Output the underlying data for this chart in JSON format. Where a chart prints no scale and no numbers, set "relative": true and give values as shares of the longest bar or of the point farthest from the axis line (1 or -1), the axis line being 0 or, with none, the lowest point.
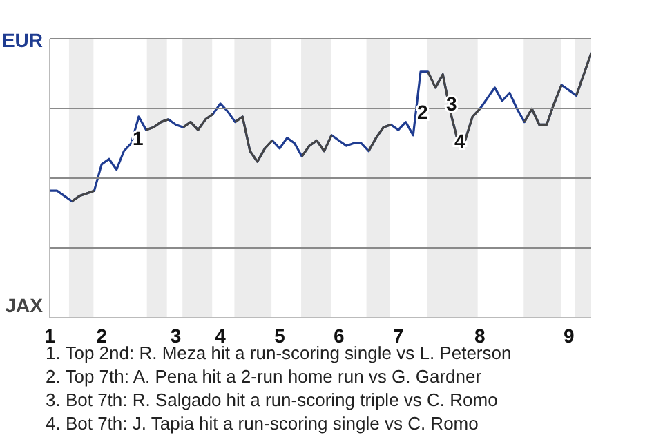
{
  "chart_data": {
    "type": "line",
    "relative": true,
    "categories": [
      "1",
      null,
      null,
      null,
      null,
      null,
      null,
      "2",
      null,
      null,
      null,
      null,
      null,
      null,
      null,
      null,
      null,
      "3",
      null,
      null,
      null,
      null,
      null,
      "4",
      null,
      null,
      null,
      null,
      null,
      null,
      null,
      "5",
      null,
      null,
      null,
      null,
      null,
      null,
      null,
      "6",
      null,
      null,
      null,
      null,
      null,
      null,
      null,
      "7",
      null,
      null,
      null,
      null,
      null,
      null,
      null,
      null,
      null,
      null,
      "8",
      null,
      null,
      null,
      null,
      null,
      null,
      null,
      null,
      null,
      null,
      null,
      "9",
      null,
      null,
      null
    ],
    "series": [
      {
        "color": "#1f3c91",
        "values": [
          0.48,
          0.48,
          0.46,
          0.44,
          0.46,
          0.47,
          0.48,
          0.58,
          0.6,
          0.56,
          0.63,
          0.66,
          0.76,
          0.71,
          0.72,
          0.74,
          0.75,
          0.73,
          0.72,
          0.74,
          0.71,
          0.75,
          0.77,
          0.81,
          0.78,
          0.74,
          0.76,
          0.63,
          0.59,
          0.64,
          0.67,
          0.64,
          0.68,
          0.66,
          0.61,
          0.65,
          0.67,
          0.63,
          0.69,
          0.67,
          0.65,
          0.66,
          0.66,
          0.63,
          0.68,
          0.72,
          0.73,
          0.71,
          0.74,
          0.69,
          0.93,
          0.93,
          0.87,
          0.92,
          0.78,
          0.67,
          0.67,
          0.76,
          0.79,
          0.83,
          0.87,
          0.82,
          0.85,
          0.79,
          0.74,
          0.79,
          0.73,
          0.73,
          0.81,
          0.88,
          0.86,
          0.84,
          0.92,
          1
        ]
      },
      {
        "color": "#454545",
        "values": [
          null,
          null,
          null,
          0.44,
          0.46,
          0.47,
          0.48,
          null,
          null,
          null,
          null,
          null,
          null,
          0.71,
          0.72,
          0.74,
          0.75,
          null,
          0.72,
          0.74,
          0.71,
          0.75,
          0.77,
          null,
          null,
          0.74,
          0.76,
          0.63,
          0.59,
          0.64,
          0.67,
          null,
          null,
          null,
          0.61,
          0.65,
          0.67,
          0.63,
          0.69,
          null,
          null,
          null,
          null,
          0.63,
          0.68,
          0.72,
          0.73,
          null,
          null,
          null,
          null,
          0.93,
          0.87,
          0.92,
          0.78,
          0.67,
          0.67,
          0.76,
          0.79,
          null,
          null,
          null,
          null,
          null,
          0.74,
          0.79,
          0.73,
          0.73,
          0.81,
          0.88,
          null,
          0.84,
          0.92,
          1
        ]
      }
    ],
    "grid": "y",
    "annotations": [
      "EUR",
      "JAX",
      "1",
      "2",
      "3",
      "4",
      "1. Top 2nd: R. Meza hit a run-scoring single vs L. Peterson",
      "2. Top 7th: A. Pena hit a 2-run home run vs G. Gardner",
      "3. Bot 7th: R. Salgado hit a run-scoring triple vs C. Romo",
      "4. Bot 7th: J. Tapia hit a run-scoring single vs C. Romo"
    ],
    "line_style": "solid",
    "marker": "none"
  }
}
